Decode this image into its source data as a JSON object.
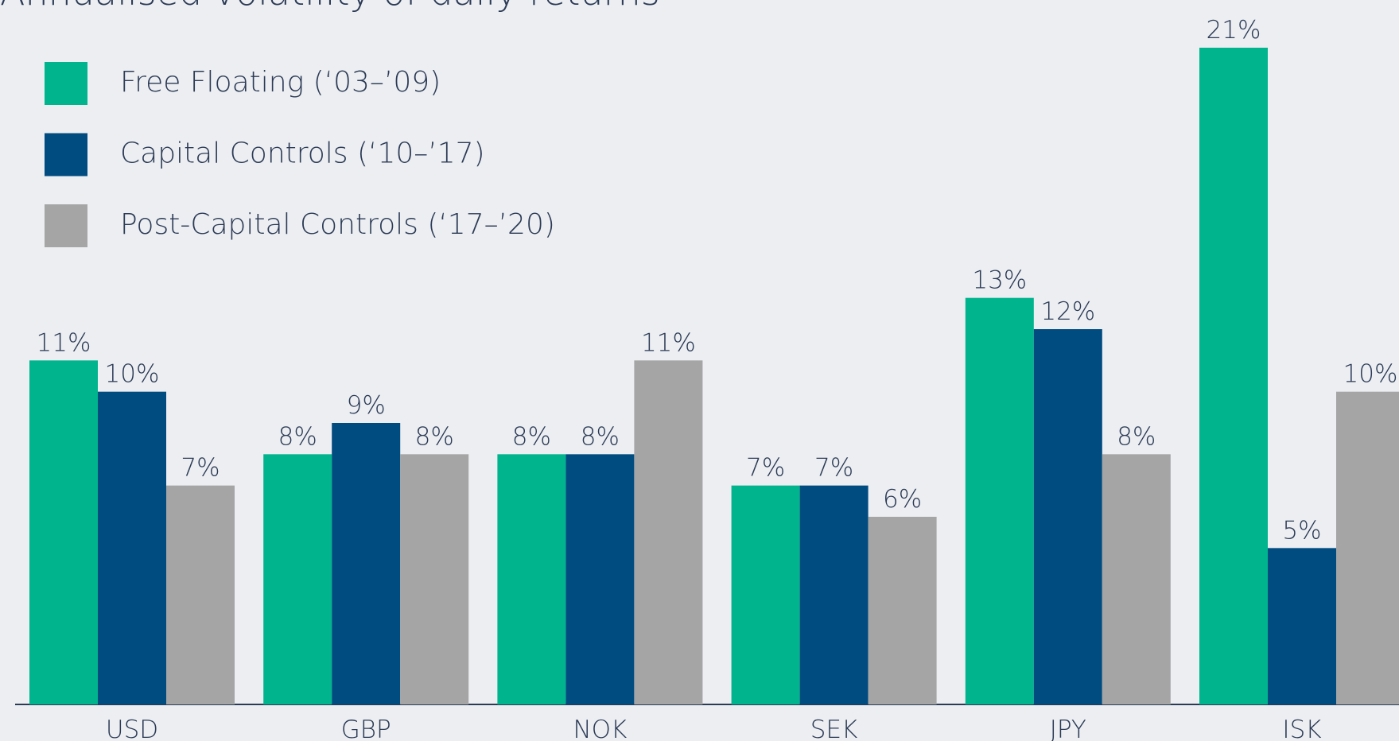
{
  "chart_data": {
    "type": "bar",
    "title": "Annualised volatility of daily returns",
    "categories": [
      "USD",
      "GBP",
      "NOK",
      "SEK",
      "JPY",
      "ISK"
    ],
    "series": [
      {
        "name": "Free Floating (‘03–’09)",
        "color": "#00b48e",
        "values": [
          11,
          8,
          8,
          7,
          13,
          21
        ],
        "value_labels": [
          "11%",
          "8%",
          "8%",
          "7%",
          "13%",
          "21%"
        ]
      },
      {
        "name": "Capital Controls (‘10–’17)",
        "color": "#004c80",
        "values": [
          10,
          9,
          8,
          7,
          12,
          5
        ],
        "value_labels": [
          "10%",
          "9%",
          "8%",
          "7%",
          "12%",
          "5%"
        ]
      },
      {
        "name": "Post-Capital Controls (‘17–’20)",
        "color": "#a5a5a5",
        "values": [
          7,
          8,
          11,
          6,
          8,
          10
        ],
        "value_labels": [
          "7%",
          "8%",
          "11%",
          "6%",
          "8%",
          "10%"
        ]
      }
    ],
    "legend": "top-left"
  }
}
